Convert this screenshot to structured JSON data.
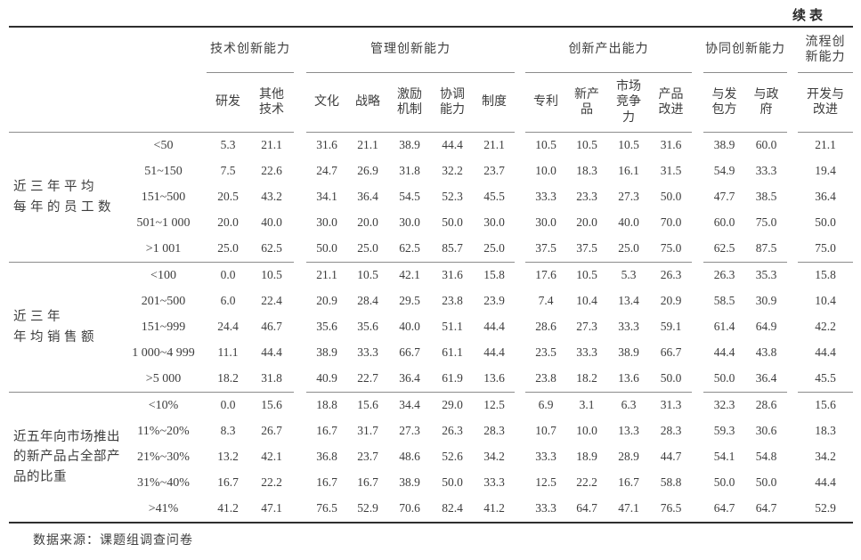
{
  "continued_label": "续表",
  "source_note": "数据来源：课题组调查问卷",
  "table": {
    "column_groups": [
      {
        "label": "技术创新能力",
        "columns": [
          "研发",
          "其他\n技术"
        ]
      },
      {
        "label": "管理创新能力",
        "columns": [
          "文化",
          "战略",
          "激励\n机制",
          "协调\n能力",
          "制度"
        ]
      },
      {
        "label": "创新产出能力",
        "columns": [
          "专利",
          "新产\n品",
          "市场\n竞争\n力",
          "产品\n改进"
        ]
      },
      {
        "label": "协同创新能力",
        "columns": [
          "与发\n包方",
          "与政\n府"
        ]
      },
      {
        "label": "流程创\n新能力",
        "columns": [
          "开发与\n改进"
        ]
      }
    ],
    "row_groups": [
      {
        "label": "近三年平均\n每年的员工数",
        "rows": [
          {
            "category": "<50",
            "values": [
              "5.3",
              "21.1",
              "31.6",
              "21.1",
              "38.9",
              "44.4",
              "21.1",
              "10.5",
              "10.5",
              "10.5",
              "31.6",
              "38.9",
              "60.0",
              "21.1"
            ]
          },
          {
            "category": "51~150",
            "values": [
              "7.5",
              "22.6",
              "24.7",
              "26.9",
              "31.8",
              "32.2",
              "23.7",
              "10.0",
              "18.3",
              "16.1",
              "31.5",
              "54.9",
              "33.3",
              "19.4"
            ]
          },
          {
            "category": "151~500",
            "values": [
              "20.5",
              "43.2",
              "34.1",
              "36.4",
              "54.5",
              "52.3",
              "45.5",
              "33.3",
              "23.3",
              "27.3",
              "50.0",
              "47.7",
              "38.5",
              "36.4"
            ]
          },
          {
            "category": "501~1 000",
            "values": [
              "20.0",
              "40.0",
              "30.0",
              "20.0",
              "30.0",
              "50.0",
              "30.0",
              "30.0",
              "20.0",
              "40.0",
              "70.0",
              "60.0",
              "75.0",
              "50.0"
            ]
          },
          {
            "category": ">1 001",
            "values": [
              "25.0",
              "62.5",
              "50.0",
              "25.0",
              "62.5",
              "85.7",
              "25.0",
              "37.5",
              "37.5",
              "25.0",
              "75.0",
              "62.5",
              "87.5",
              "75.0"
            ]
          }
        ]
      },
      {
        "label": "近三年\n年均销售额",
        "rows": [
          {
            "category": "<100",
            "values": [
              "0.0",
              "10.5",
              "21.1",
              "10.5",
              "42.1",
              "31.6",
              "15.8",
              "17.6",
              "10.5",
              "5.3",
              "26.3",
              "26.3",
              "35.3",
              "15.8"
            ]
          },
          {
            "category": "201~500",
            "values": [
              "6.0",
              "22.4",
              "20.9",
              "28.4",
              "29.5",
              "23.8",
              "23.9",
              "7.4",
              "10.4",
              "13.4",
              "20.9",
              "58.5",
              "30.9",
              "10.4"
            ]
          },
          {
            "category": "151~999",
            "values": [
              "24.4",
              "46.7",
              "35.6",
              "35.6",
              "40.0",
              "51.1",
              "44.4",
              "28.6",
              "27.3",
              "33.3",
              "59.1",
              "61.4",
              "64.9",
              "42.2"
            ]
          },
          {
            "category": "1 000~4 999",
            "values": [
              "11.1",
              "44.4",
              "38.9",
              "33.3",
              "66.7",
              "61.1",
              "44.4",
              "23.5",
              "33.3",
              "38.9",
              "66.7",
              "44.4",
              "43.8",
              "44.4"
            ]
          },
          {
            "category": ">5 000",
            "values": [
              "18.2",
              "31.8",
              "40.9",
              "22.7",
              "36.4",
              "61.9",
              "13.6",
              "23.8",
              "18.2",
              "13.6",
              "50.0",
              "50.0",
              "36.4",
              "45.5"
            ]
          }
        ]
      },
      {
        "label": "近五年向市场推出\n的新产品占全部产\n品的比重",
        "rows": [
          {
            "category": "<10%",
            "values": [
              "0.0",
              "15.6",
              "18.8",
              "15.6",
              "34.4",
              "29.0",
              "12.5",
              "6.9",
              "3.1",
              "6.3",
              "31.3",
              "32.3",
              "28.6",
              "15.6"
            ]
          },
          {
            "category": "11%~20%",
            "values": [
              "8.3",
              "26.7",
              "16.7",
              "31.7",
              "27.3",
              "26.3",
              "28.3",
              "10.7",
              "10.0",
              "13.3",
              "28.3",
              "59.3",
              "30.6",
              "18.3"
            ]
          },
          {
            "category": "21%~30%",
            "values": [
              "13.2",
              "42.1",
              "36.8",
              "23.7",
              "48.6",
              "52.6",
              "34.2",
              "33.3",
              "18.9",
              "28.9",
              "44.7",
              "54.1",
              "54.8",
              "34.2"
            ]
          },
          {
            "category": "31%~40%",
            "values": [
              "16.7",
              "22.2",
              "16.7",
              "16.7",
              "38.9",
              "50.0",
              "33.3",
              "12.5",
              "22.2",
              "16.7",
              "58.8",
              "50.0",
              "50.0",
              "44.4"
            ]
          },
          {
            "category": ">41%",
            "values": [
              "41.2",
              "47.1",
              "76.5",
              "52.9",
              "70.6",
              "82.4",
              "41.2",
              "33.3",
              "64.7",
              "47.1",
              "76.5",
              "64.7",
              "64.7",
              "52.9"
            ]
          }
        ]
      }
    ]
  }
}
